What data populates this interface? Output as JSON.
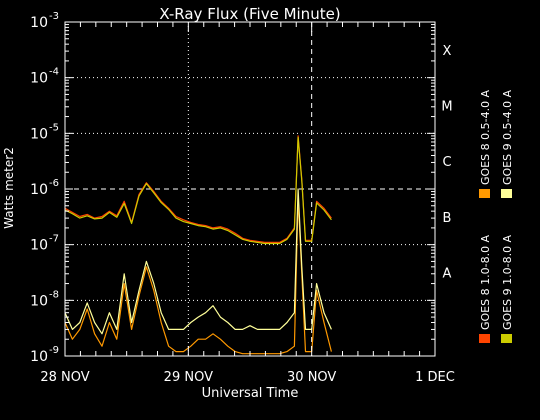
{
  "chart_data": {
    "type": "line",
    "title": "X-Ray Flux (Five Minute)",
    "xlabel": "Universal Time",
    "ylabel": "Watts meter2",
    "y_scale": "log",
    "ylim": [
      1e-09,
      0.001
    ],
    "xlim": [
      0,
      3
    ],
    "x_ticks": [
      {
        "value": 0,
        "label": "28 NOV"
      },
      {
        "value": 1,
        "label": "29 NOV"
      },
      {
        "value": 2,
        "label": "30 NOV"
      },
      {
        "value": 3,
        "label": "1 DEC"
      }
    ],
    "y_ticks": [
      {
        "exp": -9,
        "label": "10"
      },
      {
        "exp": -8,
        "label": "10"
      },
      {
        "exp": -7,
        "label": "10"
      },
      {
        "exp": -6,
        "label": "10"
      },
      {
        "exp": -5,
        "label": "10"
      },
      {
        "exp": -4,
        "label": "10"
      },
      {
        "exp": -3,
        "label": "10"
      }
    ],
    "flare_classes": [
      {
        "label": "X",
        "flux": 0.0001
      },
      {
        "label": "M",
        "flux": 1e-05
      },
      {
        "label": "C",
        "flux": 1e-06
      },
      {
        "label": "B",
        "flux": 1e-07
      },
      {
        "label": "A",
        "flux": 1e-08
      }
    ],
    "grid": "dotted at decades and day boundaries, dashed at 1e-6 and current time",
    "current_time": 2.0,
    "legend_position": "right, vertical",
    "x": [
      0.0,
      0.06,
      0.12,
      0.18,
      0.24,
      0.3,
      0.36,
      0.42,
      0.48,
      0.54,
      0.6,
      0.66,
      0.72,
      0.78,
      0.84,
      0.9,
      0.96,
      1.02,
      1.08,
      1.14,
      1.2,
      1.26,
      1.32,
      1.38,
      1.44,
      1.5,
      1.56,
      1.62,
      1.68,
      1.74,
      1.8,
      1.86,
      1.89,
      1.92,
      1.95,
      2.0,
      2.04,
      2.1,
      2.16
    ],
    "series": [
      {
        "name": "GOES 8  1.0-8.0 A",
        "color": "#ff4400",
        "values": [
          4.5e-07,
          3.8e-07,
          3.2e-07,
          3.5e-07,
          3e-07,
          3.2e-07,
          4e-07,
          3.3e-07,
          6e-07,
          2.5e-07,
          8e-07,
          1.3e-06,
          9e-07,
          6e-07,
          4.5e-07,
          3.2e-07,
          2.8e-07,
          2.5e-07,
          2.3e-07,
          2.2e-07,
          2e-07,
          2.1e-07,
          1.9e-07,
          1.6e-07,
          1.3e-07,
          1.2e-07,
          1.15e-07,
          1.1e-07,
          1.1e-07,
          1.1e-07,
          1.3e-07,
          2e-07,
          9e-06,
          1.5e-06,
          1.2e-07,
          1.2e-07,
          6e-07,
          4.5e-07,
          3e-07
        ]
      },
      {
        "name": "GOES 8  0.5-4.0 A",
        "color": "#ff9900",
        "values": [
          4e-09,
          2e-09,
          3e-09,
          7e-09,
          2.5e-09,
          1.5e-09,
          4e-09,
          2e-09,
          2e-08,
          3e-09,
          1.2e-08,
          4e-08,
          1.5e-08,
          4e-09,
          1.5e-09,
          1.2e-09,
          1.2e-09,
          1.5e-09,
          2e-09,
          2e-09,
          2.5e-09,
          2e-09,
          1.5e-09,
          1.2e-09,
          1.1e-09,
          1.1e-09,
          1.1e-09,
          1.1e-09,
          1.1e-09,
          1.1e-09,
          1.2e-09,
          1.5e-09,
          7e-07,
          3e-08,
          1.2e-09,
          1.2e-09,
          1.5e-08,
          4e-09,
          1.2e-09
        ]
      },
      {
        "name": "GOES 9  1.0-8.0 A",
        "color": "#cccc00",
        "values": [
          4.2e-07,
          3.6e-07,
          3e-07,
          3.3e-07,
          2.9e-07,
          3e-07,
          3.8e-07,
          3.1e-07,
          5.5e-07,
          2.4e-07,
          7.5e-07,
          1.25e-06,
          8.5e-07,
          5.7e-07,
          4.3e-07,
          3e-07,
          2.6e-07,
          2.4e-07,
          2.2e-07,
          2.1e-07,
          1.9e-07,
          2e-07,
          1.8e-07,
          1.5e-07,
          1.25e-07,
          1.15e-07,
          1.1e-07,
          1.05e-07,
          1.05e-07,
          1.05e-07,
          1.25e-07,
          1.9e-07,
          8.5e-06,
          1.4e-06,
          1.15e-07,
          1.15e-07,
          5.6e-07,
          4.2e-07,
          2.8e-07
        ]
      },
      {
        "name": "GOES 9  0.5-4.0 A",
        "color": "#ffff99",
        "values": [
          6e-09,
          3e-09,
          4e-09,
          9e-09,
          4e-09,
          2.5e-09,
          6e-09,
          3e-09,
          3e-08,
          4e-09,
          1.5e-08,
          5e-08,
          2e-08,
          6e-09,
          3e-09,
          3e-09,
          3e-09,
          4e-09,
          5e-09,
          6e-09,
          8e-09,
          5e-09,
          4e-09,
          3e-09,
          3e-09,
          3.5e-09,
          3e-09,
          3e-09,
          3e-09,
          3e-09,
          4e-09,
          6e-09,
          1e-06,
          4e-08,
          3e-09,
          3e-09,
          2e-08,
          6e-09,
          3e-09
        ]
      }
    ]
  }
}
